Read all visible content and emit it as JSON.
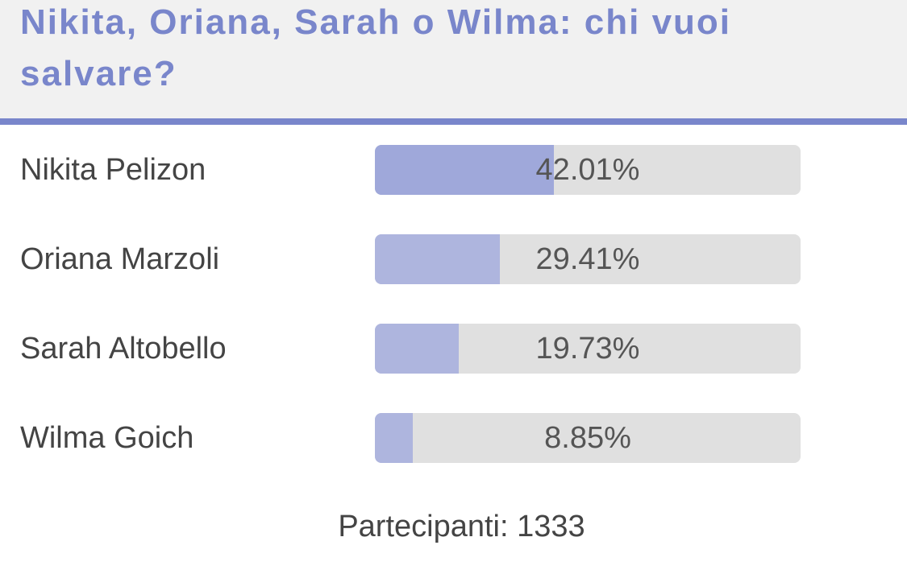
{
  "chart_data": {
    "type": "bar",
    "orientation": "horizontal",
    "title": "Nikita, Oriana, Sarah o Wilma: chi vuoi salvare?",
    "categories": [
      "Nikita Pelizon",
      "Oriana Marzoli",
      "Sarah Altobello",
      "Wilma Goich"
    ],
    "values": [
      42.01,
      29.41,
      19.73,
      8.85
    ],
    "value_labels": [
      "42.01%",
      "29.41%",
      "19.73%",
      "8.85%"
    ],
    "colors": [
      "#9fa8da",
      "#aeb5de",
      "#aeb5de",
      "#aeb5de"
    ],
    "track_color": "#e0e0e0",
    "xlim": [
      0,
      100
    ],
    "footer": "Partecipanti: 1333"
  }
}
